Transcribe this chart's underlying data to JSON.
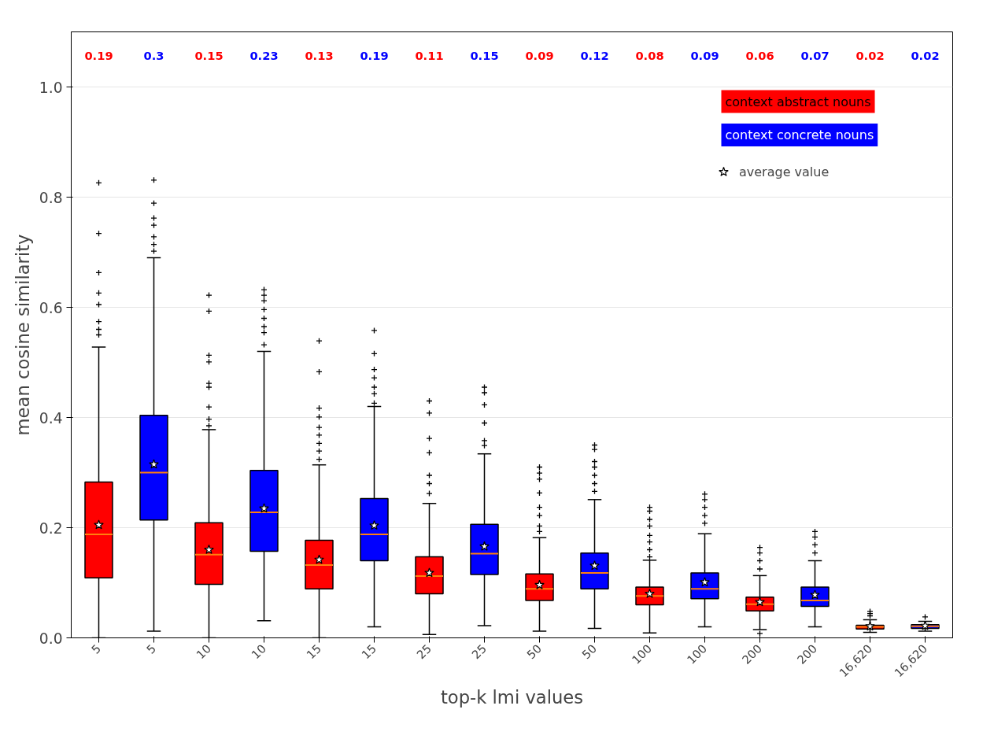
{
  "chart_data": {
    "type": "box",
    "xlabel": "top-k lmi values",
    "ylabel": "mean cosine similarity",
    "categories": [
      "5",
      "5",
      "10",
      "10",
      "15",
      "15",
      "25",
      "25",
      "50",
      "50",
      "100",
      "100",
      "200",
      "200",
      "16,620",
      "16,620"
    ],
    "ylim": [
      0,
      1.1
    ],
    "yticks": [
      {
        "value": 0,
        "label": "0.0"
      },
      {
        "value": 0.2,
        "label": "0.2"
      },
      {
        "value": 0.4,
        "label": "0.4"
      },
      {
        "value": 0.6,
        "label": "0.6"
      },
      {
        "value": 0.8,
        "label": "0.8"
      },
      {
        "value": 1.0,
        "label": "1.0"
      }
    ],
    "grid": "y",
    "legend": "top right",
    "marker": "cross",
    "annotations": [
      "0.19",
      "0.3",
      "0.15",
      "0.23",
      "0.13",
      "0.19",
      "0.11",
      "0.15",
      "0.09",
      "0.12",
      "0.08",
      "0.09",
      "0.06",
      "0.07",
      "0.02",
      "0.02"
    ],
    "series": [
      {
        "name": "context abstract nouns",
        "color": "#ff0000",
        "boxes": [
          {
            "low": 0.0,
            "q1": 0.109,
            "median": 0.188,
            "q3": 0.283,
            "high": 0.528,
            "outliers": [
              0.826,
              0.734,
              0.663,
              0.626,
              0.605,
              0.574,
              0.56,
              0.55
            ]
          },
          null,
          {
            "low": 0.0,
            "q1": 0.097,
            "median": 0.151,
            "q3": 0.209,
            "high": 0.378,
            "outliers": [
              0.622,
              0.593,
              0.513,
              0.501,
              0.462,
              0.455,
              0.419,
              0.397,
              0.385
            ]
          },
          null,
          {
            "low": 0.0,
            "q1": 0.089,
            "median": 0.132,
            "q3": 0.177,
            "high": 0.314,
            "outliers": [
              0.539,
              0.483,
              0.417,
              0.401,
              0.382,
              0.368,
              0.353,
              0.339,
              0.324
            ]
          },
          null,
          {
            "low": 0.006,
            "q1": 0.08,
            "median": 0.112,
            "q3": 0.147,
            "high": 0.244,
            "outliers": [
              0.43,
              0.408,
              0.362,
              0.336,
              0.295,
              0.28,
              0.262
            ]
          },
          null,
          {
            "low": 0.012,
            "q1": 0.068,
            "median": 0.089,
            "q3": 0.116,
            "high": 0.182,
            "outliers": [
              0.31,
              0.299,
              0.288,
              0.263,
              0.237,
              0.222,
              0.203,
              0.193
            ]
          },
          null,
          {
            "low": 0.009,
            "q1": 0.06,
            "median": 0.076,
            "q3": 0.092,
            "high": 0.141,
            "outliers": [
              0.237,
              0.23,
              0.215,
              0.203,
              0.186,
              0.174,
              0.16,
              0.147
            ]
          },
          null,
          {
            "low": 0.015,
            "q1": 0.049,
            "median": 0.061,
            "q3": 0.074,
            "high": 0.113,
            "outliers": [
              0.164,
              0.154,
              0.14,
              0.125,
              0.008
            ]
          },
          null,
          {
            "low": 0.01,
            "q1": 0.016,
            "median": 0.02,
            "q3": 0.023,
            "high": 0.033,
            "outliers": [
              0.048,
              0.044,
              0.04
            ]
          },
          null
        ]
      },
      {
        "name": "context concrete nouns",
        "color": "#0000ff",
        "boxes": [
          null,
          {
            "low": 0.012,
            "q1": 0.214,
            "median": 0.3,
            "q3": 0.404,
            "high": 0.69,
            "outliers": [
              0.831,
              0.789,
              0.762,
              0.749,
              0.728,
              0.714,
              0.702
            ]
          },
          null,
          {
            "low": 0.031,
            "q1": 0.157,
            "median": 0.228,
            "q3": 0.304,
            "high": 0.52,
            "outliers": [
              0.632,
              0.622,
              0.612,
              0.596,
              0.58,
              0.565,
              0.554,
              0.532
            ]
          },
          null,
          {
            "low": 0.02,
            "q1": 0.14,
            "median": 0.188,
            "q3": 0.253,
            "high": 0.42,
            "outliers": [
              0.558,
              0.516,
              0.487,
              0.472,
              0.455,
              0.443,
              0.426
            ]
          },
          null,
          {
            "low": 0.022,
            "q1": 0.115,
            "median": 0.153,
            "q3": 0.206,
            "high": 0.334,
            "outliers": [
              0.455,
              0.445,
              0.423,
              0.39,
              0.358,
              0.349
            ]
          },
          null,
          {
            "low": 0.017,
            "q1": 0.089,
            "median": 0.118,
            "q3": 0.154,
            "high": 0.251,
            "outliers": [
              0.35,
              0.342,
              0.32,
              0.31,
              0.295,
              0.28,
              0.266
            ]
          },
          null,
          {
            "low": 0.02,
            "q1": 0.071,
            "median": 0.089,
            "q3": 0.118,
            "high": 0.189,
            "outliers": [
              0.261,
              0.251,
              0.237,
              0.222,
              0.208
            ]
          },
          null,
          {
            "low": 0.02,
            "q1": 0.057,
            "median": 0.068,
            "q3": 0.092,
            "high": 0.14,
            "outliers": [
              0.193,
              0.183,
              0.169,
              0.154
            ]
          },
          null,
          {
            "low": 0.012,
            "q1": 0.017,
            "median": 0.021,
            "q3": 0.024,
            "high": 0.03,
            "outliers": [
              0.038
            ]
          }
        ]
      },
      {
        "name": "average value",
        "type": "scatter",
        "color": "#ffffff",
        "marker": "star",
        "values": [
          0.205,
          0.315,
          0.16,
          0.235,
          0.142,
          0.204,
          0.118,
          0.166,
          0.096,
          0.131,
          0.08,
          0.101,
          0.065,
          0.078,
          0.021,
          0.022
        ]
      }
    ]
  }
}
